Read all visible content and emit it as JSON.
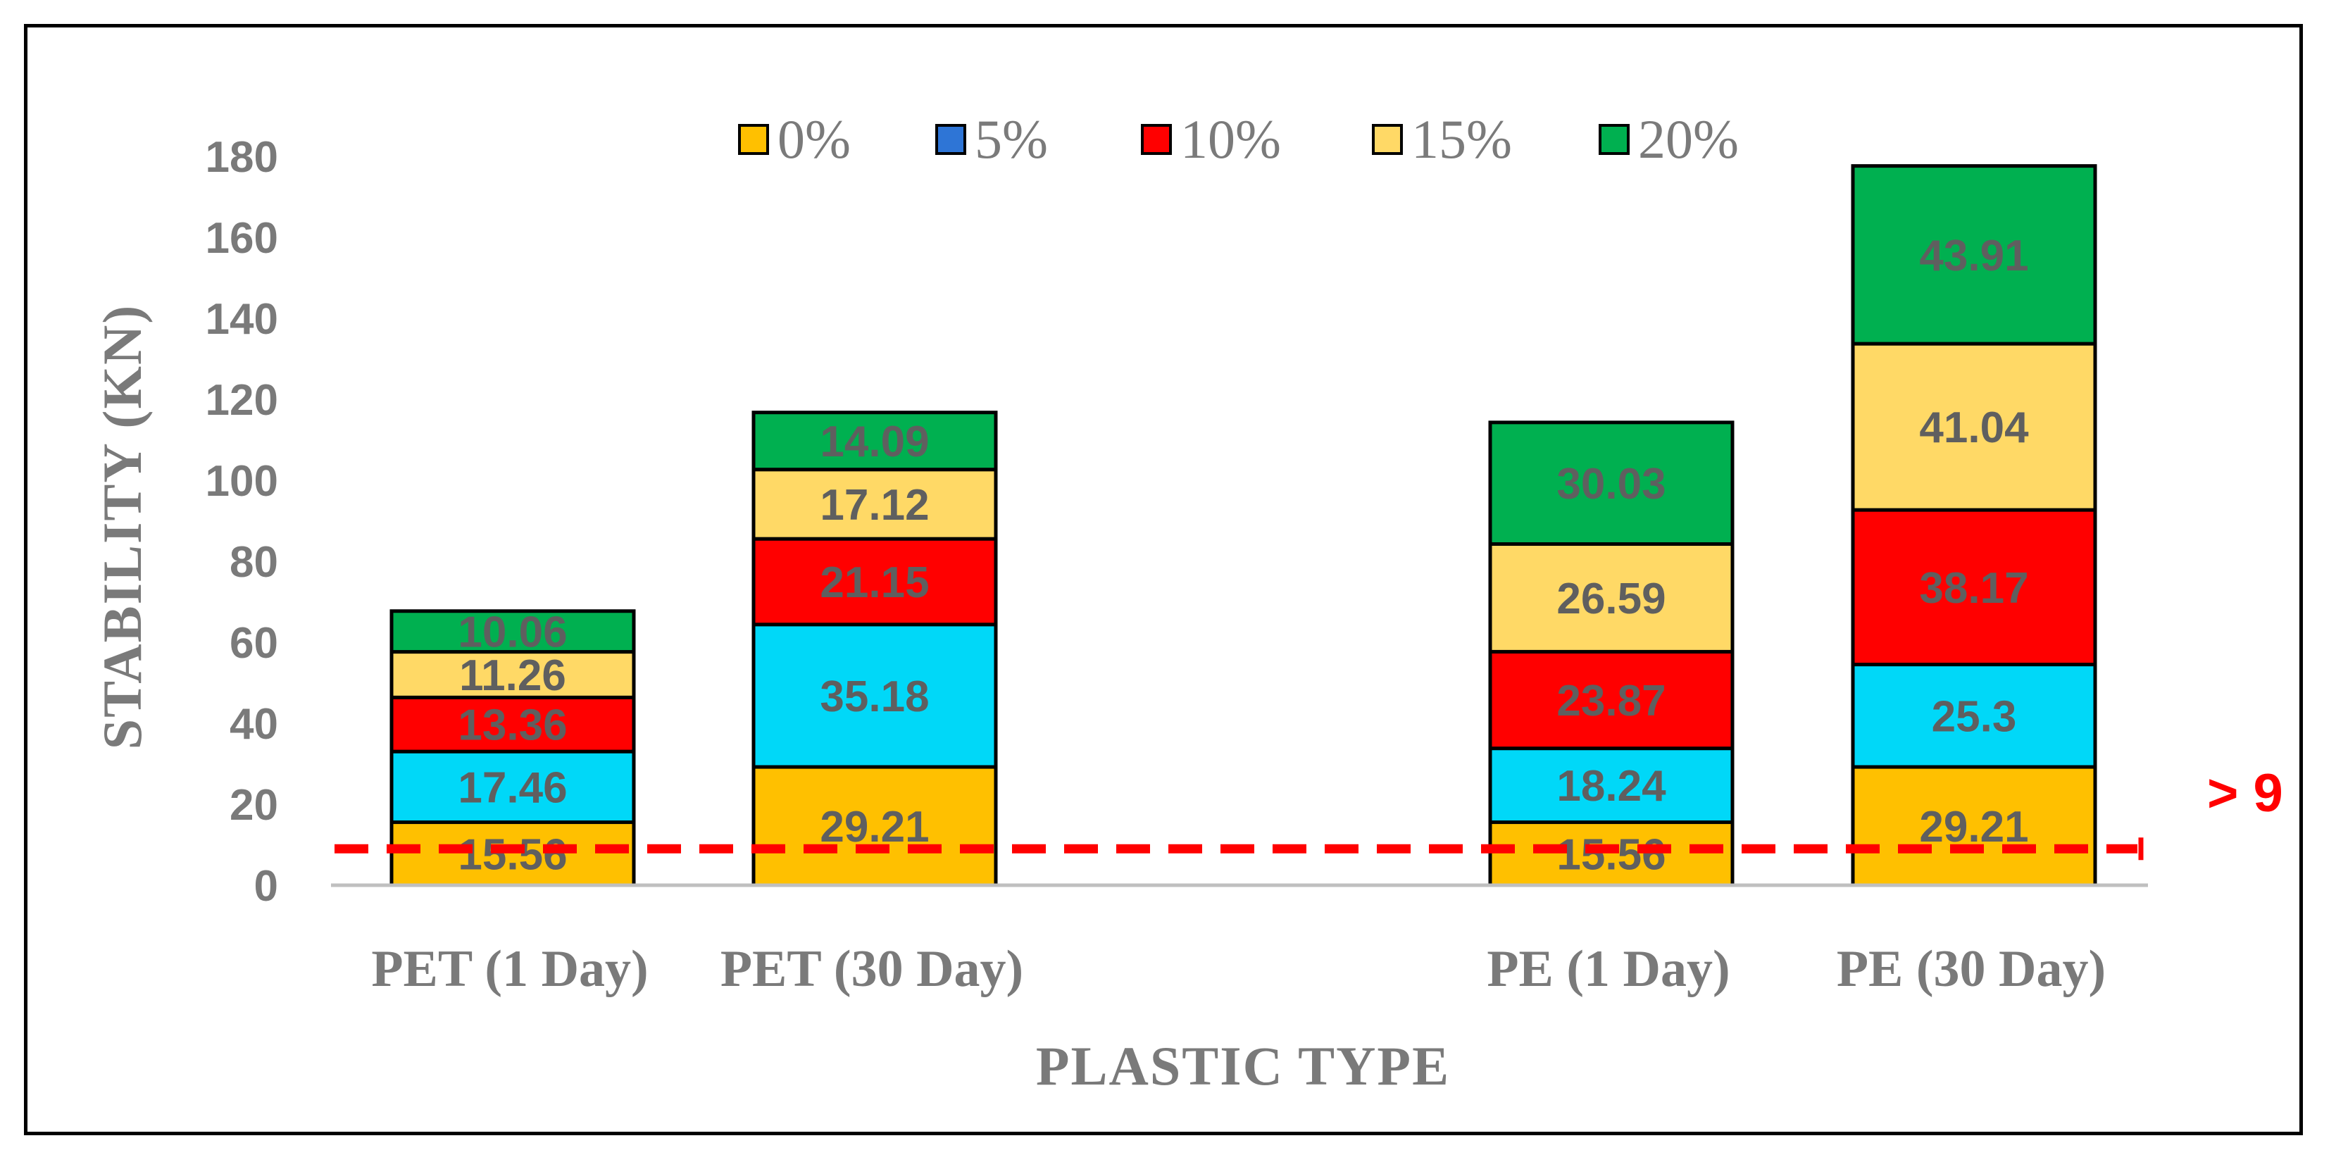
{
  "chart_data": {
    "type": "stacked-bar",
    "title": "",
    "xlabel": "PLASTIC  TYPE",
    "ylabel": "STABILITY (KN)",
    "ylim": [
      0,
      180
    ],
    "yticks": [
      0,
      20,
      40,
      60,
      80,
      100,
      120,
      140,
      160,
      180
    ],
    "categories": [
      "PET (1 Day)",
      "PET (30 Day)",
      "PE (1 Day)",
      "PE (30 Day)"
    ],
    "series": [
      {
        "name": "0%",
        "color": "#FFC000",
        "values": [
          15.56,
          29.21,
          15.56,
          29.21
        ]
      },
      {
        "name": "5%",
        "color": "#00D8F8",
        "legend_color": "#2E75D6",
        "values": [
          17.46,
          35.18,
          18.24,
          25.3
        ]
      },
      {
        "name": "10%",
        "color": "#FF0000",
        "values": [
          13.36,
          21.15,
          23.87,
          38.17
        ]
      },
      {
        "name": "15%",
        "color": "#FFD966",
        "values": [
          11.26,
          17.12,
          26.59,
          41.04
        ]
      },
      {
        "name": "20%",
        "color": "#00B050",
        "values": [
          10.06,
          14.09,
          30.03,
          43.91
        ]
      }
    ],
    "value_labels": [
      [
        "15.56",
        "17.46",
        "13.36",
        "11.26",
        "10.06"
      ],
      [
        "29.21",
        "35.18",
        "21.15",
        "17.12",
        "14.09"
      ],
      [
        "15.56",
        "18.24",
        "23.87",
        "26.59",
        "30.03"
      ],
      [
        "29.21",
        "25.3",
        "38.17",
        "41.04",
        "43.91"
      ]
    ],
    "legend_position": "top",
    "threshold": {
      "value": 9,
      "label": "> 9",
      "color": "#FF0000",
      "style": "dashed"
    }
  }
}
